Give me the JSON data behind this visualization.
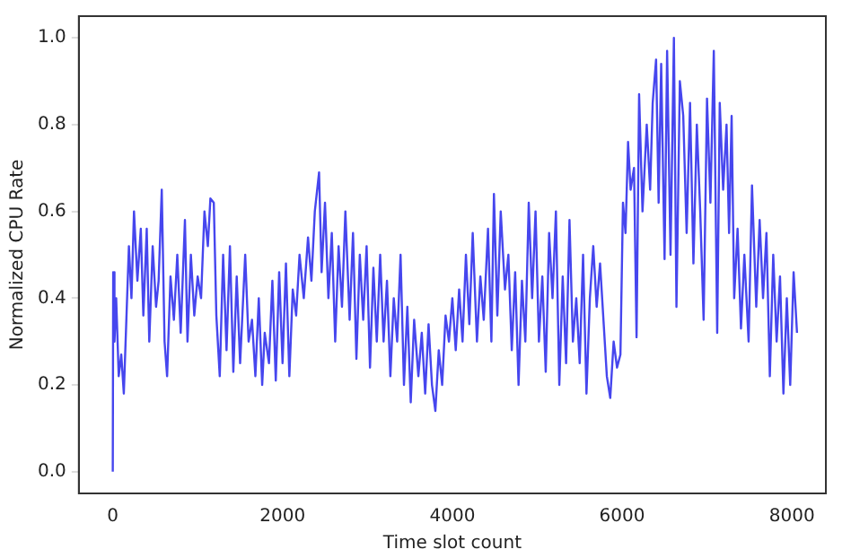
{
  "chart_data": {
    "type": "line",
    "xlabel": "Time slot count",
    "ylabel": "Normalized CPU Rate",
    "xlim": [
      -400,
      8400
    ],
    "xticks": [
      0,
      2000,
      4000,
      6000,
      8000
    ],
    "ylim": [
      -0.05,
      1.05
    ],
    "yticks": [
      {
        "value": 0,
        "label": "0.0"
      },
      0.2,
      0.4,
      0.6,
      0.8,
      {
        "value": 1,
        "label": "1.0"
      }
    ],
    "grid": false,
    "legend": false,
    "marker": "none",
    "line_style": "solid",
    "series": [
      {
        "color": "#4646ee",
        "x": [
          0,
          5,
          20,
          40,
          70,
          100,
          130,
          160,
          190,
          220,
          250,
          290,
          330,
          360,
          400,
          430,
          470,
          510,
          540,
          577,
          610,
          640,
          680,
          720,
          760,
          800,
          850,
          880,
          920,
          960,
          1000,
          1040,
          1080,
          1120,
          1150,
          1190,
          1220,
          1260,
          1300,
          1340,
          1380,
          1420,
          1460,
          1500,
          1560,
          1600,
          1640,
          1680,
          1720,
          1760,
          1790,
          1840,
          1880,
          1920,
          1960,
          2000,
          2040,
          2080,
          2120,
          2160,
          2200,
          2250,
          2300,
          2340,
          2380,
          2430,
          2460,
          2500,
          2540,
          2580,
          2620,
          2660,
          2700,
          2740,
          2790,
          2830,
          2870,
          2910,
          2950,
          2990,
          3030,
          3070,
          3110,
          3150,
          3190,
          3230,
          3270,
          3310,
          3350,
          3390,
          3430,
          3470,
          3510,
          3550,
          3600,
          3640,
          3680,
          3720,
          3760,
          3800,
          3840,
          3880,
          3920,
          3960,
          4000,
          4040,
          4080,
          4120,
          4160,
          4200,
          4240,
          4290,
          4330,
          4370,
          4420,
          4460,
          4490,
          4530,
          4570,
          4620,
          4660,
          4700,
          4740,
          4780,
          4820,
          4860,
          4900,
          4940,
          4980,
          5020,
          5060,
          5100,
          5140,
          5180,
          5220,
          5260,
          5300,
          5340,
          5380,
          5420,
          5460,
          5500,
          5540,
          5580,
          5620,
          5660,
          5700,
          5740,
          5780,
          5820,
          5860,
          5900,
          5940,
          5980,
          6010,
          6040,
          6070,
          6100,
          6140,
          6170,
          6200,
          6240,
          6290,
          6330,
          6360,
          6400,
          6430,
          6460,
          6500,
          6530,
          6570,
          6610,
          6640,
          6680,
          6720,
          6760,
          6800,
          6840,
          6880,
          6920,
          6960,
          7000,
          7040,
          7080,
          7120,
          7150,
          7190,
          7230,
          7260,
          7290,
          7320,
          7360,
          7400,
          7440,
          7490,
          7530,
          7580,
          7620,
          7660,
          7700,
          7740,
          7780,
          7820,
          7860,
          7900,
          7940,
          7980,
          8020,
          8060
        ],
        "values": [
          0.0,
          0.46,
          0.3,
          0.4,
          0.22,
          0.27,
          0.18,
          0.35,
          0.52,
          0.4,
          0.6,
          0.44,
          0.56,
          0.36,
          0.56,
          0.3,
          0.52,
          0.38,
          0.44,
          0.65,
          0.3,
          0.22,
          0.45,
          0.35,
          0.5,
          0.32,
          0.58,
          0.3,
          0.5,
          0.36,
          0.45,
          0.4,
          0.6,
          0.52,
          0.63,
          0.62,
          0.36,
          0.22,
          0.5,
          0.28,
          0.52,
          0.23,
          0.45,
          0.25,
          0.5,
          0.3,
          0.35,
          0.22,
          0.4,
          0.2,
          0.32,
          0.25,
          0.44,
          0.21,
          0.46,
          0.25,
          0.48,
          0.22,
          0.42,
          0.36,
          0.5,
          0.4,
          0.54,
          0.44,
          0.6,
          0.69,
          0.46,
          0.62,
          0.4,
          0.55,
          0.3,
          0.52,
          0.38,
          0.6,
          0.35,
          0.55,
          0.26,
          0.5,
          0.35,
          0.52,
          0.24,
          0.47,
          0.3,
          0.5,
          0.3,
          0.44,
          0.22,
          0.4,
          0.3,
          0.5,
          0.2,
          0.38,
          0.16,
          0.35,
          0.22,
          0.32,
          0.18,
          0.34,
          0.2,
          0.14,
          0.28,
          0.2,
          0.36,
          0.3,
          0.4,
          0.28,
          0.42,
          0.3,
          0.5,
          0.34,
          0.55,
          0.3,
          0.45,
          0.35,
          0.56,
          0.3,
          0.64,
          0.36,
          0.6,
          0.42,
          0.5,
          0.28,
          0.46,
          0.2,
          0.44,
          0.3,
          0.62,
          0.4,
          0.6,
          0.3,
          0.45,
          0.23,
          0.55,
          0.4,
          0.6,
          0.2,
          0.45,
          0.25,
          0.58,
          0.3,
          0.4,
          0.25,
          0.5,
          0.18,
          0.4,
          0.52,
          0.38,
          0.48,
          0.35,
          0.22,
          0.17,
          0.3,
          0.24,
          0.27,
          0.62,
          0.55,
          0.76,
          0.65,
          0.7,
          0.31,
          0.87,
          0.6,
          0.8,
          0.65,
          0.85,
          0.95,
          0.62,
          0.94,
          0.49,
          0.97,
          0.5,
          1.0,
          0.38,
          0.9,
          0.82,
          0.55,
          0.85,
          0.48,
          0.8,
          0.6,
          0.35,
          0.86,
          0.62,
          0.97,
          0.32,
          0.85,
          0.65,
          0.8,
          0.55,
          0.82,
          0.4,
          0.56,
          0.33,
          0.5,
          0.3,
          0.66,
          0.38,
          0.58,
          0.4,
          0.55,
          0.22,
          0.5,
          0.3,
          0.45,
          0.18,
          0.4,
          0.2,
          0.46,
          0.32
        ]
      }
    ]
  }
}
